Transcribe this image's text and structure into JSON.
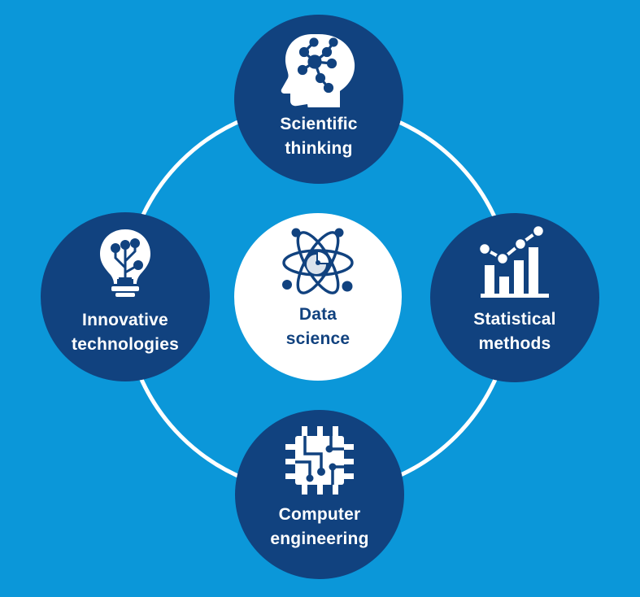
{
  "center": {
    "line1": "Data",
    "line2": "science",
    "icon": "atom-pie-chart-icon"
  },
  "nodes": {
    "top": {
      "line1": "Scientific",
      "line2": "thinking",
      "icon": "brain-network-head-icon"
    },
    "left": {
      "line1": "Innovative",
      "line2": "technologies",
      "icon": "lightbulb-circuit-icon"
    },
    "right": {
      "line1": "Statistical",
      "line2": "methods",
      "icon": "bar-line-chart-icon"
    },
    "bottom": {
      "line1": "Computer",
      "line2": "engineering",
      "icon": "circuit-chip-icon"
    }
  },
  "colors": {
    "background": "#0b97d9",
    "node": "#11427f",
    "center": "#ffffff",
    "ring": "#ffffff"
  }
}
